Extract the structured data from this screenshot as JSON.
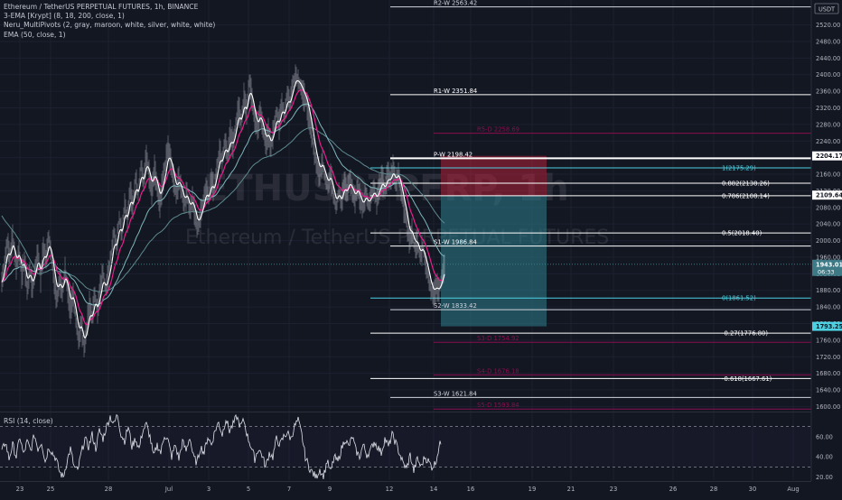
{
  "symbol_title": "Ethereum / TetherUS PERPETUAL FUTURES, 1h, BINANCE",
  "indicators": [
    "3-EMA [Krypt] (8, 18, 200, close, 1)",
    "Neru_MultiPivots (2, gray, maroon, white, silver, white, white)",
    "EMA (50, close, 1)"
  ],
  "currency_label": "USDT",
  "watermark": {
    "symbol": "ETHUSDTPERP, 1h",
    "name": "Ethereum / TetherUS PERPETUAL FUTURES"
  },
  "price_axis": {
    "min": 1590,
    "max": 2580,
    "ticks": [
      2520,
      2480,
      2440,
      2400,
      2360,
      2320,
      2280,
      2240,
      2200,
      2160,
      2120,
      2080,
      2040,
      2000,
      1960,
      1920,
      1880,
      1840,
      1800,
      1760,
      1720,
      1680,
      1640,
      1600
    ],
    "tick_labels": [
      "2520.00",
      "2480.00",
      "2440.00",
      "2400.00",
      "2360.00",
      "2320.00",
      "2280.00",
      "2240.00",
      "2200.00",
      "2160.00",
      "2120.00",
      "2080.00",
      "2040.00",
      "2000.00",
      "1960.00",
      "1920.00",
      "1880.00",
      "1840.00",
      "1800.00",
      "1760.00",
      "1720.00",
      "1680.00",
      "1640.00",
      "1600.00"
    ]
  },
  "price_tags": [
    {
      "label": "2204.17",
      "value": 2204.17,
      "bg": "#ffffff",
      "fg": "#131722"
    },
    {
      "label": "2109.64",
      "value": 2109.64,
      "bg": "#ffffff",
      "fg": "#131722"
    },
    {
      "label": "1943.01",
      "sub": "06:33",
      "value": 1943.01,
      "bg": "#3d7a86",
      "fg": "#ffffff"
    },
    {
      "label": "1793.25",
      "value": 1793.25,
      "bg": "#4dd0e1",
      "fg": "#131722"
    }
  ],
  "pivot_lines": [
    {
      "label": "R2-W 2563.42",
      "value": 2563.42,
      "color": "#d1d4dc"
    },
    {
      "label": "R1-W 2351.84",
      "value": 2351.84,
      "color": "#ffffff"
    },
    {
      "label": "R5-D 2258.69",
      "value": 2258.69,
      "color": "#880e4f"
    },
    {
      "label": "P-W 2198.42",
      "value": 2198.42,
      "color": "#ffffff"
    },
    {
      "label": "S1-W 1986.84",
      "value": 1986.84,
      "color": "#ffffff"
    },
    {
      "label": "S2-W 1833.42",
      "value": 1833.42,
      "color": "#d1d4dc"
    },
    {
      "label": "S3-D 1754.92",
      "value": 1754.92,
      "color": "#880e4f"
    },
    {
      "label": "S4-D 1676.18",
      "value": 1676.18,
      "color": "#880e4f"
    },
    {
      "label": "S3-W 1621.84",
      "value": 1621.84,
      "color": "#d1d4dc"
    },
    {
      "label": "S5-D 1593.84",
      "value": 1593.84,
      "color": "#880e4f"
    }
  ],
  "fib_levels": [
    {
      "label": "1(2175.29)",
      "value": 2175.29,
      "color": "#4dd0e1"
    },
    {
      "label": "0.882(2138.26)",
      "value": 2138.26,
      "color": "#ffffff"
    },
    {
      "label": "0.786(2108.14)",
      "value": 2108.14,
      "color": "#ffffff"
    },
    {
      "label": "0.5(2018.40)",
      "value": 2018.4,
      "color": "#ffffff"
    },
    {
      "label": "0(1861.52)",
      "value": 1861.52,
      "color": "#4dd0e1"
    },
    {
      "label": "-0.27(1776.80)",
      "value": 1776.8,
      "color": "#ffffff"
    },
    {
      "label": "-0.618(1667.61)",
      "value": 1667.61,
      "color": "#ffffff"
    }
  ],
  "position_box": {
    "entry": 2108.14,
    "stop": 2204.17,
    "target": 1793.25
  },
  "rsi": {
    "label": "RSI (14, close)",
    "tick_labels": [
      "60.00",
      "40.00",
      "20.00"
    ],
    "ticks": [
      60,
      40,
      20
    ],
    "min": 17,
    "max": 83,
    "upper_band": 70,
    "lower_band": 30
  },
  "time_axis_labels": [
    "23",
    "25",
    "28",
    "Jul",
    "3",
    "5",
    "7",
    "9",
    "12",
    "14",
    "16",
    "19",
    "21",
    "23",
    "26",
    "28",
    "30",
    "Aug"
  ],
  "chart_data": {
    "type": "line",
    "series": [],
    "price_path": [
      [
        0,
        1900
      ],
      [
        3,
        1945
      ],
      [
        6,
        1995
      ],
      [
        9,
        1960
      ],
      [
        12,
        2010
      ],
      [
        16,
        1935
      ],
      [
        19,
        1975
      ],
      [
        22,
        1920
      ],
      [
        25,
        1950
      ],
      [
        28,
        1880
      ],
      [
        31,
        1930
      ],
      [
        34,
        1885
      ],
      [
        37,
        1935
      ],
      [
        40,
        1970
      ],
      [
        43,
        1910
      ],
      [
        46,
        1985
      ],
      [
        49,
        1955
      ],
      [
        52,
        2010
      ],
      [
        55,
        1960
      ],
      [
        58,
        1900
      ],
      [
        61,
        1860
      ],
      [
        64,
        1905
      ],
      [
        67,
        1875
      ],
      [
        70,
        1930
      ],
      [
        73,
        1880
      ],
      [
        76,
        1835
      ],
      [
        79,
        1870
      ],
      [
        82,
        1810
      ],
      [
        85,
        1760
      ],
      [
        88,
        1800
      ],
      [
        91,
        1740
      ],
      [
        94,
        1790
      ],
      [
        97,
        1845
      ],
      [
        100,
        1815
      ],
      [
        103,
        1870
      ],
      [
        106,
        1830
      ],
      [
        109,
        1885
      ],
      [
        112,
        1925
      ],
      [
        115,
        1880
      ],
      [
        118,
        1920
      ],
      [
        121,
        1965
      ],
      [
        124,
        2020
      ],
      [
        127,
        1985
      ],
      [
        130,
        2055
      ],
      [
        133,
        2015
      ],
      [
        136,
        2090
      ],
      [
        139,
        2050
      ],
      [
        142,
        2120
      ],
      [
        145,
        2080
      ],
      [
        148,
        2150
      ],
      [
        151,
        2110
      ],
      [
        154,
        2180
      ],
      [
        157,
        2140
      ],
      [
        160,
        2205
      ],
      [
        163,
        2160
      ],
      [
        166,
        2120
      ],
      [
        169,
        2170
      ],
      [
        172,
        2130
      ],
      [
        175,
        2090
      ],
      [
        178,
        2140
      ],
      [
        181,
        2180
      ],
      [
        184,
        2225
      ],
      [
        187,
        2190
      ],
      [
        190,
        2150
      ],
      [
        193,
        2110
      ],
      [
        196,
        2150
      ],
      [
        199,
        2120
      ],
      [
        202,
        2085
      ],
      [
        205,
        2115
      ],
      [
        208,
        2070
      ],
      [
        211,
        2100
      ],
      [
        214,
        2060
      ],
      [
        217,
        2030
      ],
      [
        220,
        2065
      ],
      [
        223,
        2095
      ],
      [
        226,
        2130
      ],
      [
        229,
        2100
      ],
      [
        232,
        2150
      ],
      [
        235,
        2120
      ],
      [
        238,
        2175
      ],
      [
        241,
        2215
      ],
      [
        244,
        2190
      ],
      [
        247,
        2240
      ],
      [
        250,
        2205
      ],
      [
        253,
        2255
      ],
      [
        256,
        2230
      ],
      [
        259,
        2280
      ],
      [
        262,
        2320
      ],
      [
        265,
        2285
      ],
      [
        268,
        2345
      ],
      [
        271,
        2310
      ],
      [
        274,
        2385
      ],
      [
        277,
        2340
      ],
      [
        280,
        2290
      ],
      [
        283,
        2265
      ],
      [
        286,
        2310
      ],
      [
        289,
        2270
      ],
      [
        292,
        2230
      ],
      [
        295,
        2260
      ],
      [
        298,
        2225
      ],
      [
        301,
        2270
      ],
      [
        304,
        2310
      ],
      [
        307,
        2280
      ],
      [
        310,
        2330
      ],
      [
        313,
        2300
      ],
      [
        316,
        2355
      ],
      [
        319,
        2330
      ],
      [
        322,
        2375
      ],
      [
        325,
        2400
      ],
      [
        328,
        2385
      ],
      [
        331,
        2370
      ],
      [
        334,
        2350
      ],
      [
        337,
        2335
      ],
      [
        340,
        2300
      ],
      [
        343,
        2260
      ],
      [
        346,
        2210
      ],
      [
        349,
        2180
      ],
      [
        352,
        2160
      ],
      [
        355,
        2190
      ],
      [
        358,
        2150
      ],
      [
        361,
        2130
      ],
      [
        364,
        2160
      ],
      [
        367,
        2110
      ],
      [
        370,
        2080
      ],
      [
        373,
        2120
      ],
      [
        376,
        2090
      ],
      [
        379,
        2140
      ],
      [
        382,
        2115
      ],
      [
        385,
        2150
      ],
      [
        388,
        2120
      ],
      [
        391,
        2100
      ],
      [
        394,
        2130
      ],
      [
        397,
        2095
      ],
      [
        400,
        2080
      ],
      [
        403,
        2115
      ],
      [
        406,
        2085
      ],
      [
        409,
        2110
      ],
      [
        412,
        2125
      ],
      [
        415,
        2095
      ],
      [
        418,
        2130
      ],
      [
        421,
        2150
      ],
      [
        424,
        2120
      ],
      [
        427,
        2160
      ],
      [
        430,
        2145
      ],
      [
        433,
        2175
      ],
      [
        436,
        2140
      ],
      [
        439,
        2165
      ],
      [
        442,
        2120
      ],
      [
        445,
        2080
      ],
      [
        448,
        2050
      ],
      [
        451,
        2000
      ],
      [
        454,
        2020
      ],
      [
        457,
        1985
      ],
      [
        460,
        1995
      ],
      [
        463,
        1960
      ],
      [
        466,
        1985
      ],
      [
        469,
        1945
      ],
      [
        472,
        1915
      ],
      [
        475,
        1880
      ],
      [
        478,
        1870
      ],
      [
        481,
        1890
      ],
      [
        484,
        1880
      ],
      [
        487,
        1910
      ],
      [
        490,
        1940
      ]
    ],
    "rsi_path": [
      [
        0,
        45
      ],
      [
        4,
        55
      ],
      [
        8,
        38
      ],
      [
        12,
        52
      ],
      [
        16,
        40
      ],
      [
        20,
        60
      ],
      [
        24,
        42
      ],
      [
        28,
        55
      ],
      [
        32,
        46
      ],
      [
        36,
        62
      ],
      [
        40,
        48
      ],
      [
        44,
        55
      ],
      [
        48,
        35
      ],
      [
        52,
        50
      ],
      [
        56,
        44
      ],
      [
        60,
        38
      ],
      [
        64,
        25
      ],
      [
        68,
        20
      ],
      [
        72,
        35
      ],
      [
        76,
        48
      ],
      [
        80,
        30
      ],
      [
        84,
        26
      ],
      [
        88,
        44
      ],
      [
        92,
        58
      ],
      [
        96,
        50
      ],
      [
        100,
        62
      ],
      [
        104,
        48
      ],
      [
        108,
        66
      ],
      [
        112,
        58
      ],
      [
        116,
        70
      ],
      [
        120,
        80
      ],
      [
        124,
        72
      ],
      [
        128,
        82
      ],
      [
        132,
        62
      ],
      [
        136,
        56
      ],
      [
        140,
        70
      ],
      [
        144,
        50
      ],
      [
        148,
        58
      ],
      [
        152,
        48
      ],
      [
        156,
        66
      ],
      [
        160,
        72
      ],
      [
        164,
        60
      ],
      [
        168,
        40
      ],
      [
        172,
        52
      ],
      [
        176,
        44
      ],
      [
        180,
        62
      ],
      [
        184,
        56
      ],
      [
        188,
        40
      ],
      [
        192,
        52
      ],
      [
        196,
        38
      ],
      [
        200,
        55
      ],
      [
        204,
        46
      ],
      [
        208,
        60
      ],
      [
        212,
        40
      ],
      [
        216,
        34
      ],
      [
        220,
        50
      ],
      [
        224,
        44
      ],
      [
        228,
        60
      ],
      [
        232,
        52
      ],
      [
        236,
        66
      ],
      [
        240,
        74
      ],
      [
        244,
        62
      ],
      [
        248,
        78
      ],
      [
        252,
        66
      ],
      [
        256,
        72
      ],
      [
        260,
        80
      ],
      [
        264,
        70
      ],
      [
        268,
        76
      ],
      [
        272,
        60
      ],
      [
        276,
        50
      ],
      [
        280,
        38
      ],
      [
        284,
        48
      ],
      [
        288,
        42
      ],
      [
        292,
        30
      ],
      [
        296,
        44
      ],
      [
        300,
        40
      ],
      [
        304,
        58
      ],
      [
        308,
        52
      ],
      [
        312,
        60
      ],
      [
        316,
        64
      ],
      [
        320,
        58
      ],
      [
        324,
        70
      ],
      [
        328,
        76
      ],
      [
        332,
        62
      ],
      [
        336,
        40
      ],
      [
        340,
        30
      ],
      [
        344,
        24
      ],
      [
        348,
        20
      ],
      [
        352,
        28
      ],
      [
        356,
        20
      ],
      [
        360,
        36
      ],
      [
        364,
        25
      ],
      [
        368,
        40
      ],
      [
        372,
        35
      ],
      [
        376,
        48
      ],
      [
        380,
        58
      ],
      [
        384,
        50
      ],
      [
        388,
        60
      ],
      [
        392,
        46
      ],
      [
        396,
        40
      ],
      [
        400,
        52
      ],
      [
        404,
        42
      ],
      [
        408,
        46
      ],
      [
        412,
        55
      ],
      [
        416,
        50
      ],
      [
        420,
        44
      ],
      [
        424,
        58
      ],
      [
        428,
        50
      ],
      [
        432,
        62
      ],
      [
        436,
        54
      ],
      [
        440,
        44
      ],
      [
        444,
        34
      ],
      [
        448,
        28
      ],
      [
        452,
        42
      ],
      [
        456,
        26
      ],
      [
        460,
        38
      ],
      [
        464,
        30
      ],
      [
        468,
        40
      ],
      [
        472,
        36
      ],
      [
        476,
        30
      ],
      [
        480,
        34
      ],
      [
        484,
        50
      ],
      [
        487,
        56
      ]
    ]
  }
}
